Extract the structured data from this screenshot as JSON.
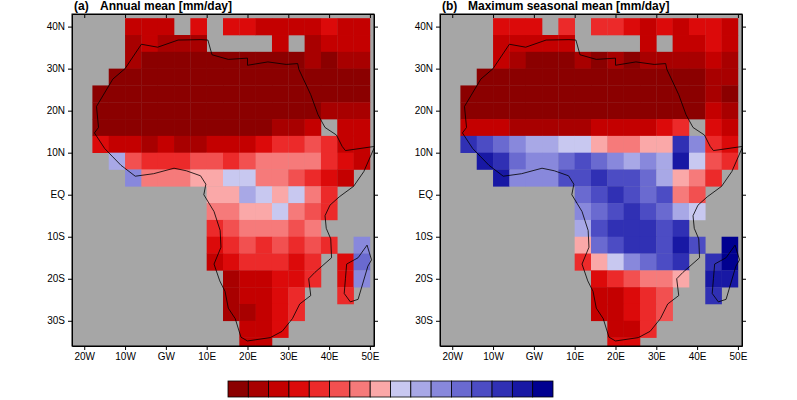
{
  "chart_data": [
    {
      "type": "heatmap",
      "label": "(a)",
      "title": "Annual mean [mm/day]",
      "xlim": [
        -23,
        51
      ],
      "ylim": [
        -36,
        43
      ],
      "xticks": [
        {
          "value": -20,
          "label": "20W"
        },
        {
          "value": -10,
          "label": "10W"
        },
        {
          "value": 0,
          "label": "GW"
        },
        {
          "value": 10,
          "label": "10E"
        },
        {
          "value": 20,
          "label": "20E"
        },
        {
          "value": 30,
          "label": "30E"
        },
        {
          "value": 40,
          "label": "40E"
        },
        {
          "value": 50,
          "label": "50E"
        }
      ],
      "yticks": [
        {
          "value": 40,
          "label": "40N"
        },
        {
          "value": 30,
          "label": "30N"
        },
        {
          "value": 20,
          "label": "20N"
        },
        {
          "value": 10,
          "label": "10N"
        },
        {
          "value": 0,
          "label": "EQ"
        },
        {
          "value": -10,
          "label": "10S"
        },
        {
          "value": -20,
          "label": "20S"
        },
        {
          "value": -30,
          "label": "30S"
        }
      ],
      "x": [
        -20,
        -16,
        -12,
        -8,
        -4,
        0,
        4,
        8,
        12,
        16,
        20,
        24,
        28,
        32,
        36,
        40,
        44,
        48
      ],
      "y": [
        40,
        36,
        32,
        28,
        24,
        20,
        16,
        12,
        8,
        4,
        0,
        -4,
        -8,
        -12,
        -16,
        -20,
        -24,
        -28,
        -32,
        -36
      ],
      "values": [
        [
          null,
          null,
          null,
          -2.6,
          -2.8,
          -2.6,
          null,
          -2.4,
          null,
          -2.2,
          -2.4,
          -2.6,
          -2.8,
          -2.6,
          -2.8,
          -2.4,
          -2.6,
          -2.8
        ],
        [
          null,
          null,
          null,
          -3.2,
          -3.0,
          -3.2,
          -3.4,
          -3.2,
          null,
          null,
          null,
          null,
          -3.0,
          null,
          -3.2,
          -3.0,
          -2.8,
          -3.0
        ],
        [
          null,
          null,
          null,
          -3.4,
          -3.6,
          -3.8,
          -3.8,
          -3.8,
          -3.6,
          -3.8,
          -3.6,
          -3.8,
          -3.6,
          -3.6,
          -3.4,
          -3.6,
          -3.2,
          -3.4
        ],
        [
          null,
          null,
          -3.8,
          -3.8,
          -3.8,
          -3.8,
          -3.8,
          -3.8,
          -3.8,
          -3.8,
          -3.8,
          -3.8,
          -3.8,
          -3.8,
          -3.8,
          -3.8,
          -3.6,
          -3.6
        ],
        [
          null,
          -3.8,
          -3.8,
          -3.8,
          -3.8,
          -3.8,
          -3.8,
          -3.8,
          -3.8,
          -3.8,
          -3.8,
          -3.8,
          -3.8,
          -3.8,
          -3.8,
          -3.8,
          -3.6,
          -3.6
        ],
        [
          null,
          -3.8,
          -3.8,
          -3.8,
          -3.8,
          -3.8,
          -3.8,
          -3.8,
          -3.8,
          -3.8,
          -3.8,
          -3.8,
          -3.8,
          -3.8,
          -3.8,
          -3.4,
          -3.2,
          -3.4
        ],
        [
          null,
          -3.6,
          -3.6,
          -3.8,
          -3.8,
          -3.8,
          -3.8,
          -3.8,
          -3.8,
          -3.8,
          -3.8,
          -3.6,
          -3.4,
          -3.2,
          -2.6,
          null,
          -2.8,
          -3.0
        ],
        [
          null,
          -2.4,
          -2.6,
          -3.0,
          -3.2,
          -3.0,
          -3.2,
          -3.2,
          -3.0,
          -2.8,
          -2.6,
          -2.4,
          -2.0,
          -1.6,
          -1.2,
          -1.8,
          -2.6,
          -3.0
        ],
        [
          null,
          null,
          0.8,
          -1.4,
          -1.8,
          -1.8,
          -1.6,
          -1.4,
          -1.2,
          -1.6,
          -1.2,
          -0.8,
          -1.0,
          -0.8,
          -0.6,
          -1.6,
          -2.4,
          -2.8
        ],
        [
          null,
          null,
          null,
          1.2,
          -0.8,
          -1.0,
          -0.6,
          -0.4,
          -0.2,
          0.4,
          0.2,
          -0.6,
          -0.8,
          -1.2,
          -1.6,
          -2.2,
          -2.8,
          null
        ],
        [
          null,
          null,
          null,
          null,
          null,
          null,
          null,
          null,
          -0.4,
          -0.2,
          0.6,
          0.2,
          -0.2,
          0.4,
          -1.0,
          -2.0,
          null,
          null
        ],
        [
          null,
          null,
          null,
          null,
          null,
          null,
          null,
          null,
          -0.6,
          -0.8,
          -0.4,
          -0.2,
          0.2,
          -0.6,
          -1.2,
          -1.6,
          null,
          null
        ],
        [
          null,
          null,
          null,
          null,
          null,
          null,
          null,
          null,
          -1.8,
          -1.4,
          -0.8,
          -0.6,
          -0.8,
          -1.2,
          -1.0,
          null,
          null,
          null
        ],
        [
          null,
          null,
          null,
          null,
          null,
          null,
          null,
          null,
          -2.2,
          -1.6,
          -1.4,
          -1.6,
          -1.4,
          -1.8,
          -1.2,
          -1.6,
          null,
          1.4
        ],
        [
          null,
          null,
          null,
          null,
          null,
          null,
          null,
          null,
          -2.8,
          -2.4,
          -2.0,
          -1.8,
          -2.0,
          -2.2,
          -1.8,
          null,
          -2.2,
          1.8
        ],
        [
          null,
          null,
          null,
          null,
          null,
          null,
          null,
          null,
          null,
          -3.2,
          -2.8,
          -2.6,
          -2.4,
          -2.2,
          -1.8,
          null,
          -2.4,
          1.2
        ],
        [
          null,
          null,
          null,
          null,
          null,
          null,
          null,
          null,
          null,
          -3.4,
          -3.0,
          -2.6,
          -2.4,
          -2.0,
          null,
          null,
          -2.0,
          null
        ],
        [
          null,
          null,
          null,
          null,
          null,
          null,
          null,
          null,
          null,
          -3.4,
          -3.2,
          -2.8,
          -2.2,
          -1.8,
          null,
          null,
          null,
          null
        ],
        [
          null,
          null,
          null,
          null,
          null,
          null,
          null,
          null,
          null,
          null,
          -3.0,
          -3.0,
          -2.4,
          null,
          null,
          null,
          null,
          null
        ],
        [
          null,
          null,
          null,
          null,
          null,
          null,
          null,
          null,
          null,
          null,
          -2.8,
          -2.6,
          null,
          null,
          null,
          null,
          null,
          null
        ]
      ]
    },
    {
      "type": "heatmap",
      "label": "(b)",
      "title": "Maximum seasonal mean [mm/day]",
      "xlim": [
        -23,
        51
      ],
      "ylim": [
        -36,
        43
      ],
      "xticks": [
        {
          "value": -20,
          "label": "20W"
        },
        {
          "value": -10,
          "label": "10W"
        },
        {
          "value": 0,
          "label": "GW"
        },
        {
          "value": 10,
          "label": "10E"
        },
        {
          "value": 20,
          "label": "20E"
        },
        {
          "value": 30,
          "label": "30E"
        },
        {
          "value": 40,
          "label": "40E"
        },
        {
          "value": 50,
          "label": "50E"
        }
      ],
      "yticks": [
        {
          "value": 40,
          "label": "40N"
        },
        {
          "value": 30,
          "label": "30N"
        },
        {
          "value": 20,
          "label": "20N"
        },
        {
          "value": 10,
          "label": "10N"
        },
        {
          "value": 0,
          "label": "EQ"
        },
        {
          "value": -10,
          "label": "10S"
        },
        {
          "value": -20,
          "label": "20S"
        },
        {
          "value": -30,
          "label": "30S"
        }
      ],
      "x": [
        -20,
        -16,
        -12,
        -8,
        -4,
        0,
        4,
        8,
        12,
        16,
        20,
        24,
        28,
        32,
        36,
        40,
        44,
        48
      ],
      "y": [
        40,
        36,
        32,
        28,
        24,
        20,
        16,
        12,
        8,
        4,
        0,
        -4,
        -8,
        -12,
        -16,
        -20,
        -24,
        -28,
        -32,
        -36
      ],
      "values": [
        [
          null,
          null,
          null,
          -2.2,
          -2.4,
          -2.2,
          null,
          -2.0,
          null,
          -1.8,
          -2.0,
          -2.4,
          -2.6,
          -2.4,
          -2.6,
          -2.2,
          -2.4,
          -2.6
        ],
        [
          null,
          null,
          null,
          -2.8,
          -2.6,
          -2.8,
          -3.0,
          -2.8,
          null,
          null,
          null,
          null,
          -2.6,
          null,
          -2.8,
          -2.6,
          -2.4,
          -2.8
        ],
        [
          null,
          null,
          null,
          -3.0,
          -3.4,
          -3.6,
          -3.8,
          -3.8,
          -3.4,
          -3.6,
          -3.2,
          -3.6,
          -3.4,
          -3.4,
          -3.2,
          -3.4,
          -3.0,
          -3.2
        ],
        [
          null,
          null,
          -3.8,
          -3.8,
          -3.8,
          -3.8,
          -3.8,
          -3.8,
          -3.8,
          -3.8,
          -3.8,
          -3.8,
          -3.8,
          -3.8,
          -3.8,
          -3.8,
          -3.4,
          -3.4
        ],
        [
          null,
          -3.8,
          -3.8,
          -3.8,
          -3.8,
          -3.8,
          -3.8,
          -3.8,
          -3.8,
          -3.8,
          -3.8,
          -3.8,
          -3.8,
          -3.8,
          -3.8,
          -3.8,
          -3.4,
          -3.6
        ],
        [
          null,
          -3.8,
          -3.8,
          -3.8,
          -3.8,
          -3.8,
          -3.8,
          -3.8,
          -3.8,
          -3.8,
          -3.8,
          -3.8,
          -3.8,
          -3.8,
          -3.8,
          -3.6,
          -3.0,
          -3.2
        ],
        [
          null,
          -2.6,
          -2.8,
          -3.0,
          -3.2,
          -3.4,
          -3.4,
          -3.4,
          -3.2,
          -3.0,
          -3.0,
          -2.8,
          -2.6,
          -2.4,
          -1.8,
          null,
          -2.4,
          -2.8
        ],
        [
          null,
          2.6,
          2.2,
          1.8,
          1.2,
          0.8,
          0.6,
          0.4,
          0.2,
          -0.4,
          -0.8,
          -0.6,
          -0.4,
          -0.2,
          2.6,
          1.0,
          -1.6,
          -2.2
        ],
        [
          null,
          null,
          3.2,
          2.8,
          1.6,
          1.2,
          1.4,
          1.8,
          2.0,
          1.6,
          1.2,
          0.8,
          1.0,
          0.6,
          3.0,
          0.4,
          -1.2,
          -2.0
        ],
        [
          null,
          null,
          null,
          3.0,
          1.2,
          1.0,
          1.4,
          2.2,
          2.4,
          2.8,
          2.4,
          2.0,
          1.6,
          0.8,
          -0.4,
          -1.0,
          -1.8,
          null
        ],
        [
          null,
          null,
          null,
          null,
          null,
          null,
          null,
          null,
          1.8,
          2.2,
          2.6,
          2.4,
          1.8,
          2.0,
          -0.6,
          -1.2,
          null,
          null
        ],
        [
          null,
          null,
          null,
          null,
          null,
          null,
          null,
          null,
          1.4,
          1.8,
          2.2,
          2.6,
          2.4,
          1.6,
          0.6,
          0.2,
          null,
          null
        ],
        [
          null,
          null,
          null,
          null,
          null,
          null,
          null,
          null,
          0.6,
          2.0,
          2.6,
          2.8,
          2.6,
          2.4,
          2.8,
          null,
          null,
          null
        ],
        [
          null,
          null,
          null,
          null,
          null,
          null,
          null,
          null,
          -0.4,
          1.6,
          2.2,
          2.6,
          2.8,
          2.4,
          3.0,
          2.2,
          null,
          3.6
        ],
        [
          null,
          null,
          null,
          null,
          null,
          null,
          null,
          null,
          -1.6,
          -0.2,
          0.4,
          1.2,
          1.6,
          2.0,
          2.6,
          null,
          2.8,
          3.6
        ],
        [
          null,
          null,
          null,
          null,
          null,
          null,
          null,
          null,
          null,
          -2.4,
          -1.8,
          -1.4,
          -0.8,
          -0.6,
          -0.4,
          null,
          3.2,
          3.4
        ],
        [
          null,
          null,
          null,
          null,
          null,
          null,
          null,
          null,
          null,
          -3.0,
          -2.6,
          -2.2,
          -1.6,
          -1.2,
          null,
          null,
          2.8,
          null
        ],
        [
          null,
          null,
          null,
          null,
          null,
          null,
          null,
          null,
          null,
          -3.0,
          -2.8,
          -2.4,
          -1.8,
          -1.4,
          null,
          null,
          null,
          null
        ],
        [
          null,
          null,
          null,
          null,
          null,
          null,
          null,
          null,
          null,
          null,
          -2.6,
          -2.6,
          -2.0,
          null,
          null,
          null,
          null,
          null
        ],
        [
          null,
          null,
          null,
          null,
          null,
          null,
          null,
          null,
          null,
          null,
          -2.4,
          -2.2,
          null,
          null,
          null,
          null,
          null,
          null
        ]
      ]
    }
  ],
  "colorbar": {
    "range": [
      -4,
      4
    ],
    "colors": [
      "#8b0000",
      "#a80000",
      "#c40000",
      "#dc0a0a",
      "#ec2a2a",
      "#f25050",
      "#f67a7a",
      "#faa8a8",
      "#c8c8f0",
      "#a8a8e6",
      "#8888dc",
      "#6a6ad0",
      "#4c4cc4",
      "#3030b4",
      "#1818a4",
      "#000090"
    ]
  }
}
